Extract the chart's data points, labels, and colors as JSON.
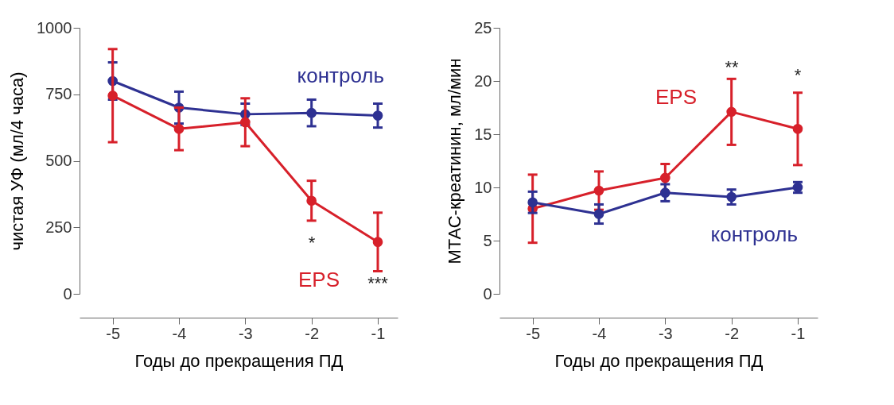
{
  "chart_data": [
    {
      "type": "line",
      "xlabel": "Годы до прекращения ПД",
      "ylabel": "чистая  УФ (мл/4 часа)",
      "x": [
        -5,
        -4,
        -3,
        -2,
        -1
      ],
      "xlim": [
        -5.5,
        -0.7
      ],
      "xticks": [
        -5,
        -4,
        -3,
        -2,
        -1
      ],
      "ylim": [
        0,
        1000
      ],
      "yticks": [
        0,
        250,
        500,
        750,
        1000
      ],
      "grid": false,
      "marker": "circle",
      "line_style": "solid",
      "series": [
        {
          "name": "контроль",
          "color": "#2e3192",
          "values": [
            800,
            700,
            675,
            680,
            670
          ],
          "errors": [
            70,
            60,
            40,
            50,
            45
          ]
        },
        {
          "name": "EPS",
          "color": "#d7202a",
          "values": [
            745,
            620,
            645,
            350,
            195
          ],
          "errors": [
            175,
            80,
            90,
            75,
            110
          ]
        }
      ],
      "annotations": [
        "*",
        "***"
      ]
    },
    {
      "type": "line",
      "xlabel": "Годы до прекращения ПД",
      "ylabel": "МТАС-креатинин, мл/мин",
      "x": [
        -5,
        -4,
        -3,
        -2,
        -1
      ],
      "xlim": [
        -5.5,
        -0.7
      ],
      "xticks": [
        -5,
        -4,
        -3,
        -2,
        -1
      ],
      "ylim": [
        0,
        25
      ],
      "yticks": [
        0,
        5,
        10,
        15,
        20,
        25
      ],
      "grid": false,
      "marker": "circle",
      "line_style": "solid",
      "series": [
        {
          "name": "EPS",
          "color": "#d7202a",
          "values": [
            8.0,
            9.7,
            10.9,
            17.1,
            15.5
          ],
          "errors": [
            3.2,
            1.8,
            1.3,
            3.1,
            3.4
          ]
        },
        {
          "name": "контроль",
          "color": "#2e3192",
          "values": [
            8.6,
            7.5,
            9.5,
            9.1,
            10.0
          ],
          "errors": [
            1.0,
            0.9,
            0.8,
            0.7,
            0.5
          ]
        }
      ],
      "annotations": [
        "**",
        "*"
      ]
    }
  ]
}
